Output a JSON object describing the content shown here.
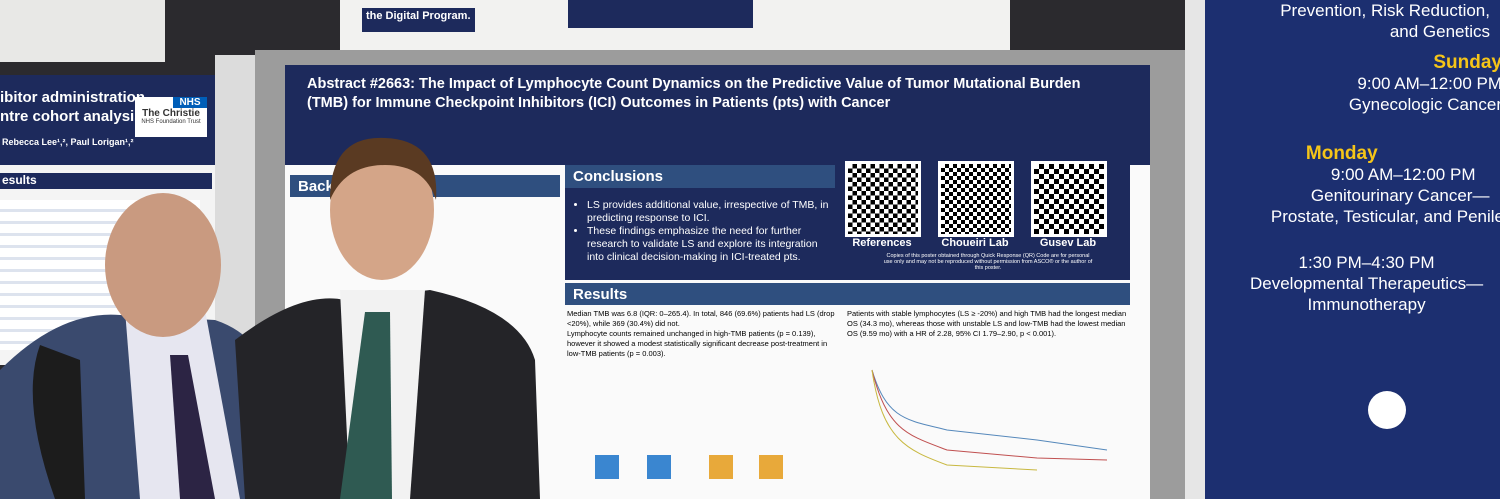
{
  "top_sign": {
    "text": "the Digital Program."
  },
  "left_poster": {
    "title_lines": [
      "ibitor administration",
      "ntre cohort analysis"
    ],
    "authors": "Rebecca Lee¹,², Paul Lorigan¹,²",
    "logo": {
      "mark": "NHS",
      "org": "The Christie",
      "sub": "NHS Foundation Trust"
    },
    "section": "esults"
  },
  "center_poster": {
    "title": "Abstract  #2663: The Impact of Lymphocyte Count Dynamics on the Predictive Value of Tumor Mutational Burden (TMB) for Immune Checkpoint Inhibitors (ICI) Outcomes in Patients (pts) with Cancer",
    "background_heading": "Back",
    "conclusions": {
      "heading": "Conclusions",
      "bullets": [
        "LS provides additional value, irrespective of TMB, in predicting response to ICI.",
        "These findings emphasize the need for further research to validate LS and explore its integration into clinical decision-making in ICI-treated pts."
      ]
    },
    "qr": [
      {
        "label": "References"
      },
      {
        "label": "Choueiri Lab"
      },
      {
        "label": "Gusev Lab"
      }
    ],
    "qr_note": "Copies of this poster obtained through Quick Response (QR) Code are for personal use only and may not be reproduced without permission from ASCO® or the author of this poster.",
    "results": {
      "heading": "Results",
      "left_text": [
        "Median TMB was 6.8 (IQR: 0–265.4). In total, 846 (69.6%) patients had LS (drop <20%), while 369 (30.4%) did not.",
        "Lymphocyte counts remained unchanged in high-TMB patients (p = 0.139), however it showed a modest statistically significant decrease post-treatment in low-TMB patients (p = 0.003)."
      ],
      "right_text": "Patients with stable lymphocytes (LS ≥ -20%) and high TMB had the longest median OS (34.3 mo), whereas those with unstable LS and low-TMB had the lowest median OS (9.59 mo) with a HR of 2.28, 95% CI 1.79–2.90, p < 0.001)."
    }
  },
  "right_banner": {
    "header_lines": [
      "Prevention, Risk Reduction,",
      "and Genetics"
    ],
    "sessions": [
      {
        "day": "Sunday",
        "time": "9:00 AM–12:00 PM",
        "topic": [
          "Gynecologic Cancer"
        ]
      },
      {
        "day": "Monday",
        "time": "9:00 AM–12:00 PM",
        "topic": [
          "Genitourinary Cancer—",
          "Prostate, Testicular, and Penile"
        ]
      },
      {
        "time": "1:30 PM–4:30 PM",
        "topic": [
          "Developmental Therapeutics—",
          "Immunotherapy"
        ]
      }
    ]
  }
}
